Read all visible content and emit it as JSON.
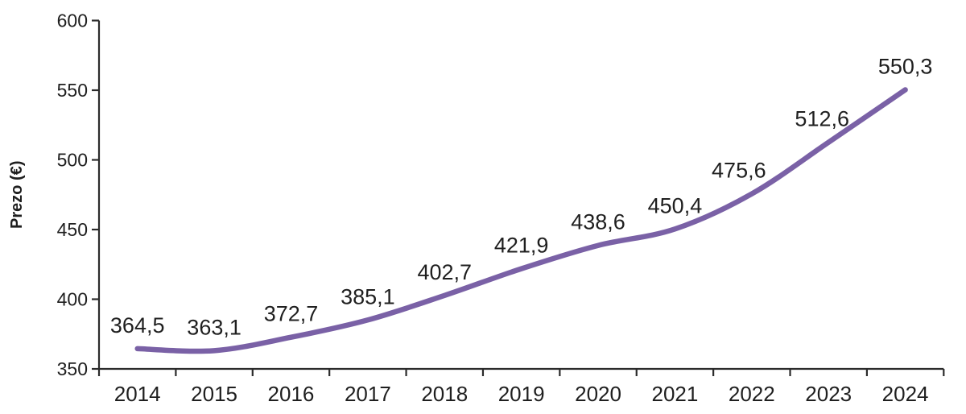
{
  "chart_data": {
    "type": "line",
    "title": "",
    "xlabel": "",
    "ylabel": "Prezo (€)",
    "categories": [
      "2014",
      "2015",
      "2016",
      "2017",
      "2018",
      "2019",
      "2020",
      "2021",
      "2022",
      "2023",
      "2024"
    ],
    "series": [
      {
        "name": "Prezo",
        "values": [
          364.5,
          363.1,
          372.7,
          385.1,
          402.7,
          421.9,
          438.6,
          450.4,
          475.6,
          512.6,
          550.3
        ],
        "color": "#7A61A6",
        "smoothed": true,
        "line_width": 6.5
      }
    ],
    "data_labels": [
      "364,5",
      "363,1",
      "372,7",
      "385,1",
      "402,7",
      "421,9",
      "438,6",
      "450,4",
      "475,6",
      "512,6",
      "550,3"
    ],
    "decimal_separator": ",",
    "ylim": [
      350,
      600
    ],
    "yticks": [
      "350",
      "400",
      "450",
      "500",
      "550",
      "600"
    ],
    "ytick_values": [
      350,
      400,
      450,
      500,
      550,
      600
    ],
    "grid": false,
    "legend": "none",
    "axis_color": "#2b2b2b",
    "text_color": "#1f1f1f"
  }
}
